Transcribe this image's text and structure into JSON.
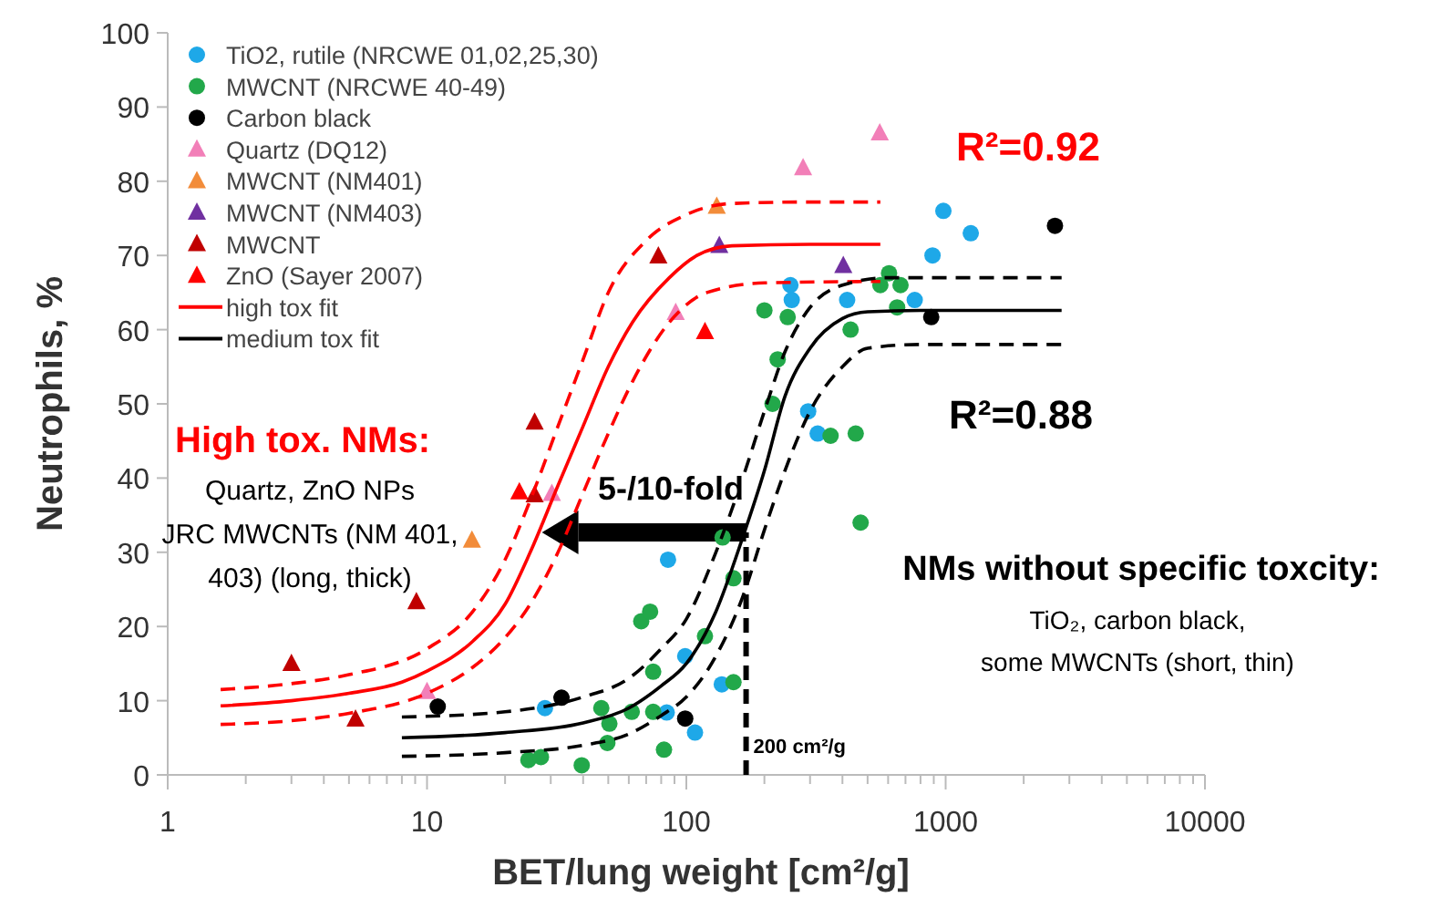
{
  "chart_data": {
    "type": "scatter",
    "xlabel": "BET/lung weight [cm²/g]",
    "ylabel": "Neutrophils, %",
    "log": "x",
    "grid": false,
    "legend": "top left",
    "xlim": [
      1,
      10000
    ],
    "ylim": [
      0,
      100
    ],
    "xticks": [
      1,
      {
        "value": 2,
        "label": null
      },
      {
        "value": 3,
        "label": null
      },
      {
        "value": 4,
        "label": null
      },
      {
        "value": 5,
        "label": null
      },
      {
        "value": 6,
        "label": null
      },
      {
        "value": 7,
        "label": null
      },
      {
        "value": 8,
        "label": null
      },
      {
        "value": 9,
        "label": null
      },
      10,
      {
        "value": 20,
        "label": null
      },
      {
        "value": 30,
        "label": null
      },
      {
        "value": 40,
        "label": null
      },
      {
        "value": 50,
        "label": null
      },
      {
        "value": 60,
        "label": null
      },
      {
        "value": 70,
        "label": null
      },
      {
        "value": 80,
        "label": null
      },
      {
        "value": 90,
        "label": null
      },
      100,
      {
        "value": 200,
        "label": null
      },
      {
        "value": 300,
        "label": null
      },
      {
        "value": 400,
        "label": null
      },
      {
        "value": 500,
        "label": null
      },
      {
        "value": 600,
        "label": null
      },
      {
        "value": 700,
        "label": null
      },
      {
        "value": 800,
        "label": null
      },
      {
        "value": 900,
        "label": null
      },
      1000,
      {
        "value": 2000,
        "label": null
      },
      {
        "value": 3000,
        "label": null
      },
      {
        "value": 4000,
        "label": null
      },
      {
        "value": 5000,
        "label": null
      },
      {
        "value": 6000,
        "label": null
      },
      {
        "value": 7000,
        "label": null
      },
      {
        "value": 8000,
        "label": null
      },
      {
        "value": 9000,
        "label": null
      },
      10000
    ],
    "yticks": [
      0,
      10,
      20,
      30,
      40,
      50,
      60,
      70,
      80,
      90,
      100
    ],
    "series": [
      {
        "name": "TiO2, rutile (NRCWE 01,02,25,30)",
        "color": "#1ea8e8",
        "marker": "circle",
        "x": [
          28.5,
          85,
          99,
          84,
          108,
          137,
          252,
          255,
          417,
          760,
          980,
          1250,
          890,
          295,
          321
        ],
        "values": [
          9,
          29,
          16,
          8.4,
          5.7,
          12.2,
          66,
          64,
          64,
          64,
          76,
          73,
          70,
          49,
          46
        ]
      },
      {
        "name": "MWCNT (NRCWE 40-49)",
        "color": "#22a84a",
        "marker": "circle",
        "x": [
          24.6,
          27.5,
          39.5,
          47,
          50.5,
          49.6,
          61.6,
          67,
          72.5,
          74.5,
          74.5,
          82,
          118,
          138,
          152,
          152,
          200,
          246,
          605,
          560,
          670,
          650,
          430,
          225,
          215,
          360,
          450,
          470
        ],
        "values": [
          2,
          2.4,
          1.3,
          9,
          6.9,
          4.3,
          8.5,
          20.7,
          22,
          13.9,
          8.5,
          3.4,
          18.7,
          32,
          26.5,
          12.5,
          62.6,
          61.7,
          67.6,
          66,
          66,
          63,
          60,
          56,
          50,
          45.7,
          46,
          34
        ]
      },
      {
        "name": "Carbon black",
        "color": "#000000",
        "marker": "circle",
        "x": [
          11,
          33,
          99,
          880,
          2640
        ],
        "values": [
          9.2,
          10.4,
          7.6,
          61.7,
          74
        ]
      },
      {
        "name": "Quartz (DQ12)",
        "color": "#f27fb8",
        "marker": "triangle",
        "x": [
          10,
          30.3,
          91,
          282,
          557
        ],
        "values": [
          11.2,
          37.9,
          62.3,
          81.8,
          86.5
        ]
      },
      {
        "name": "MWCNT (NM401)",
        "color": "#f28c3a",
        "marker": "triangle",
        "x": [
          14.9,
          131
        ],
        "values": [
          31.6,
          76.6
        ]
      },
      {
        "name": "MWCNT (NM403)",
        "color": "#7030a0",
        "marker": "triangle",
        "x": [
          134,
          403
        ],
        "values": [
          71.3,
          68.6
        ]
      },
      {
        "name": "MWCNT",
        "color": "#c00000",
        "marker": "triangle",
        "x": [
          3,
          5.3,
          9.1,
          26,
          26,
          78
        ],
        "values": [
          15,
          7.5,
          23.3,
          47.5,
          37.7,
          69.9
        ]
      },
      {
        "name": "ZnO (Sayer 2007)",
        "color": "#ff0000",
        "marker": "triangle",
        "x": [
          22.7,
          118
        ],
        "values": [
          38.1,
          59.7
        ]
      },
      {
        "name": "high tox fit",
        "type": "line",
        "color": "#ff0000",
        "line_style": "solid",
        "x": [
          1.6,
          3,
          5,
          8,
          10,
          15,
          20,
          25,
          32,
          40,
          50,
          62,
          86,
          110,
          150,
          300,
          560
        ],
        "values": [
          9.3,
          10,
          11,
          12.5,
          14,
          18,
          23,
          30,
          39,
          47,
          55,
          61,
          67,
          70,
          71.3,
          71.5,
          71.5
        ]
      },
      {
        "type": "line",
        "color": "#ff0000",
        "line_style": "dashed",
        "x": [
          1.6,
          3,
          5,
          10,
          15,
          20,
          25,
          32,
          40,
          50,
          70,
          100,
          150,
          300,
          560
        ],
        "values": [
          11.5,
          12.3,
          13.5,
          17,
          22,
          29,
          37,
          47,
          56,
          65,
          72,
          75.5,
          77,
          77.2,
          77.2
        ]
      },
      {
        "type": "line",
        "color": "#ff0000",
        "line_style": "dashed",
        "x": [
          1.6,
          3,
          5,
          10,
          15,
          20,
          25,
          32,
          40,
          50,
          62,
          86,
          120,
          200,
          560
        ],
        "values": [
          6.8,
          7.3,
          8.3,
          11,
          14.5,
          18.5,
          23,
          30,
          38,
          46,
          53,
          61,
          65,
          66.3,
          66.5
        ]
      },
      {
        "name": "medium tox fit",
        "type": "line",
        "color": "#000000",
        "line_style": "solid",
        "x": [
          8,
          20,
          40,
          60,
          80,
          100,
          130,
          165,
          200,
          240,
          300,
          400,
          500,
          800,
          2800
        ],
        "values": [
          5,
          5.7,
          7,
          9,
          12,
          15,
          22,
          32,
          41,
          51,
          57.5,
          61.5,
          62.4,
          62.6,
          62.6
        ]
      },
      {
        "type": "line",
        "color": "#000000",
        "line_style": "dashed",
        "x": [
          8,
          20,
          40,
          60,
          80,
          100,
          130,
          165,
          200,
          240,
          300,
          400,
          600,
          2800
        ],
        "values": [
          7.8,
          8.5,
          10.5,
          13,
          17,
          21,
          30,
          40,
          49,
          57,
          63,
          66,
          67,
          67
        ]
      },
      {
        "type": "line",
        "color": "#000000",
        "line_style": "dashed",
        "x": [
          8,
          20,
          40,
          60,
          80,
          100,
          130,
          165,
          200,
          240,
          300,
          400,
          500,
          800,
          2800
        ],
        "values": [
          2.5,
          3,
          4,
          5.5,
          8,
          10.5,
          16,
          24,
          33,
          41,
          49,
          55,
          57.5,
          58,
          58
        ]
      }
    ],
    "ref_lines": [
      {
        "axis": "x",
        "value": 170,
        "label": "200 cm²/g",
        "color": "#000000",
        "line_style": "dashed"
      }
    ],
    "annotations": [
      "R²=0.92",
      "R²=0.88",
      "High tox. NMs:",
      "Quartz, ZnO NPs\nJRC MWCNTs (NM 401,\n403) (long, thick)",
      "5-/10-fold",
      "NMs without specific toxcity:",
      "TiO₂, carbon black,\nsome MWCNTs (short, thin)"
    ]
  }
}
